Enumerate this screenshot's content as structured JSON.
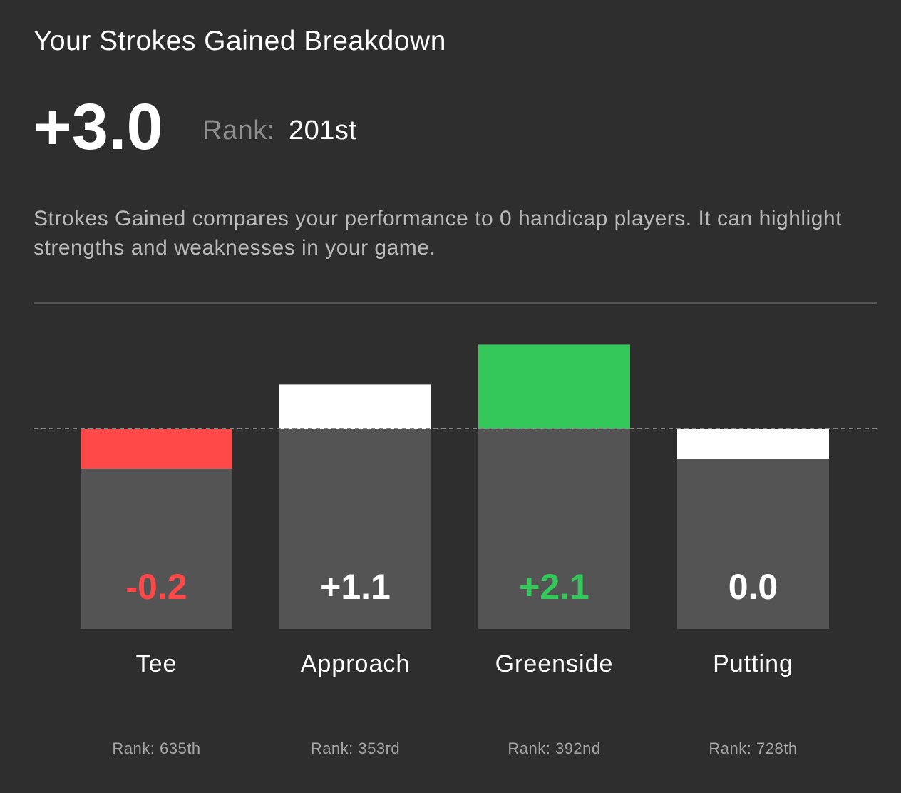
{
  "header": {
    "title": "Your Strokes Gained Breakdown",
    "total": "+3.0",
    "rank_label": "Rank:",
    "rank_value": "201st",
    "description": "Strokes Gained compares your performance to 0 handicap players. It can highlight strengths and weaknesses in your game."
  },
  "colors": {
    "background": "#2e2e2e",
    "bar_base": "#545454",
    "negative": "#ff4848",
    "best": "#34c759",
    "neutral": "#ffffff",
    "rank_text": "#a5a5a5"
  },
  "chart_data": {
    "type": "bar",
    "categories": [
      "Tee",
      "Approach",
      "Greenside",
      "Putting"
    ],
    "values": [
      -0.2,
      1.1,
      2.1,
      0.0
    ],
    "value_labels": [
      "-0.2",
      "+1.1",
      "+2.1",
      "0.0"
    ],
    "ranks": [
      "Rank: 635th",
      "Rank: 353rd",
      "Rank: 392nd",
      "Rank: 728th"
    ],
    "value_colors": [
      "#ff4848",
      "#ffffff",
      "#34c759",
      "#ffffff"
    ],
    "bar_colors": [
      "#ff4848",
      "#ffffff",
      "#34c759",
      "#ffffff"
    ],
    "baseline": 0,
    "baseline_style": "dashed",
    "grid": false,
    "legend": "none"
  }
}
